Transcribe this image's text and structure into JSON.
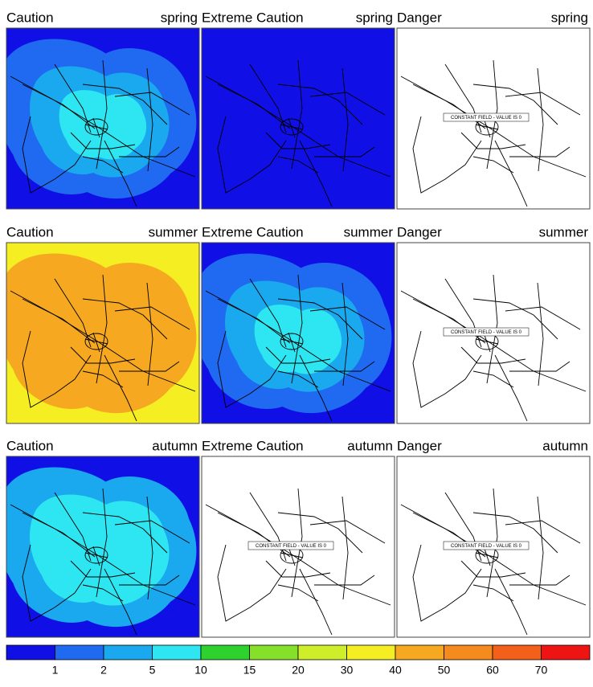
{
  "panels": [
    {
      "title": "Caution",
      "season": "spring",
      "levels": [
        0,
        1,
        2,
        3
      ]
    },
    {
      "title": "Extreme Caution",
      "season": "spring",
      "levels": [
        0
      ]
    },
    {
      "title": "Danger",
      "season": "spring",
      "levels": [],
      "note": "CONSTANT FIELD - VALUE IS 0"
    },
    {
      "title": "Caution",
      "season": "summer",
      "levels": [
        7,
        8
      ]
    },
    {
      "title": "Extreme Caution",
      "season": "summer",
      "levels": [
        0,
        1,
        2,
        3
      ]
    },
    {
      "title": "Danger",
      "season": "summer",
      "levels": [],
      "note": "CONSTANT FIELD - VALUE IS 0"
    },
    {
      "title": "Caution",
      "season": "autumn",
      "levels": [
        0,
        2,
        3
      ]
    },
    {
      "title": "Extreme Caution",
      "season": "autumn",
      "levels": [],
      "note": "CONSTANT FIELD - VALUE IS 0"
    },
    {
      "title": "Danger",
      "season": "autumn",
      "levels": [],
      "note": "CONSTANT FIELD - VALUE IS 0"
    }
  ],
  "colorbar": {
    "colors": [
      "#1010e6",
      "#1f6af0",
      "#1aa8ee",
      "#2ee6f2",
      "#2ed22e",
      "#86e02a",
      "#cfee2a",
      "#f5ee22",
      "#f5a820",
      "#f58a1e",
      "#f2601a",
      "#ee1414"
    ],
    "ticks": [
      1,
      2,
      5,
      10,
      15,
      20,
      30,
      40,
      50,
      60,
      70
    ]
  }
}
